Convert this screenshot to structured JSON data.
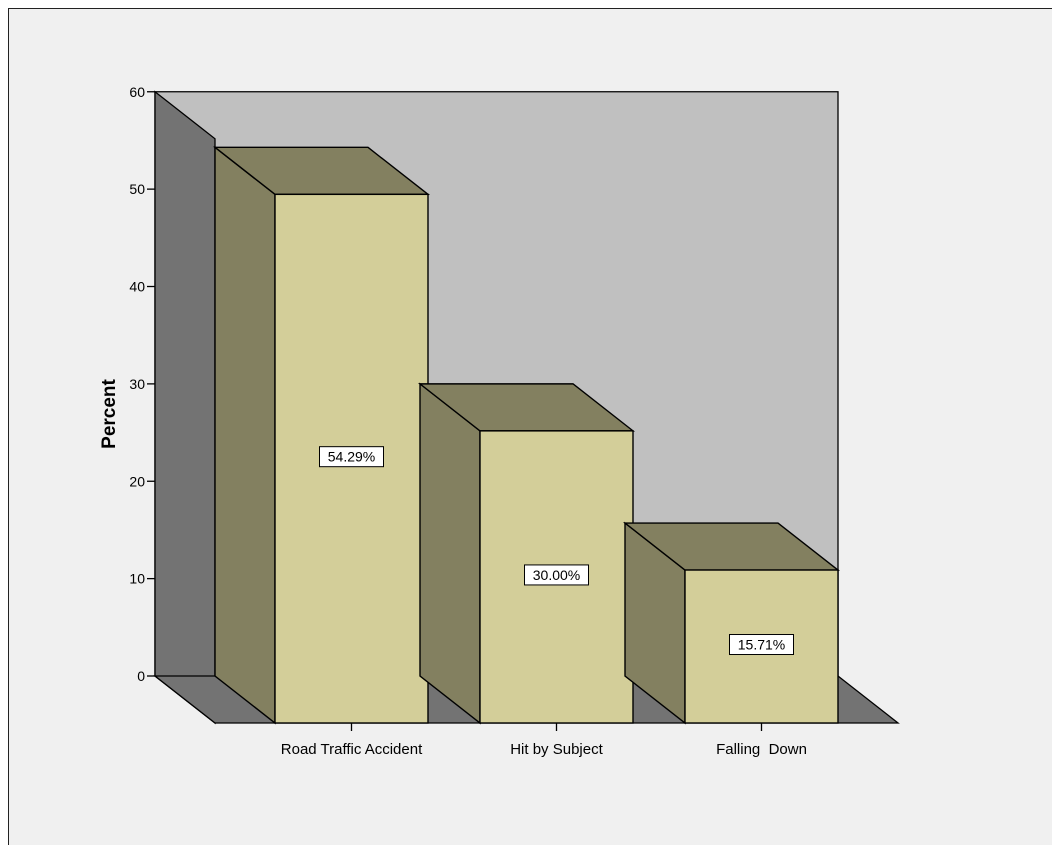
{
  "chart_data": {
    "type": "bar",
    "style": "3d",
    "categories": [
      "Road Traffic Accident",
      "Hit by Subject",
      "Falling  Down"
    ],
    "values": [
      54.29,
      30.0,
      15.71
    ],
    "data_labels": [
      "54.29%",
      "30.00%",
      "15.71%"
    ],
    "xlabel": "",
    "ylabel": "Percent",
    "ylim": [
      0,
      60
    ],
    "yticks": [
      0,
      10,
      20,
      30,
      40,
      50,
      60
    ],
    "grid": false,
    "legend": "none",
    "colors": {
      "bar_front": "#d3ce99",
      "bar_side": "#838060",
      "bar_top": "#838060",
      "back_wall": "#c0c0c0",
      "side_wall": "#737373",
      "floor": "#737373",
      "background": "#f0f0f0",
      "outline": "#000000"
    }
  }
}
